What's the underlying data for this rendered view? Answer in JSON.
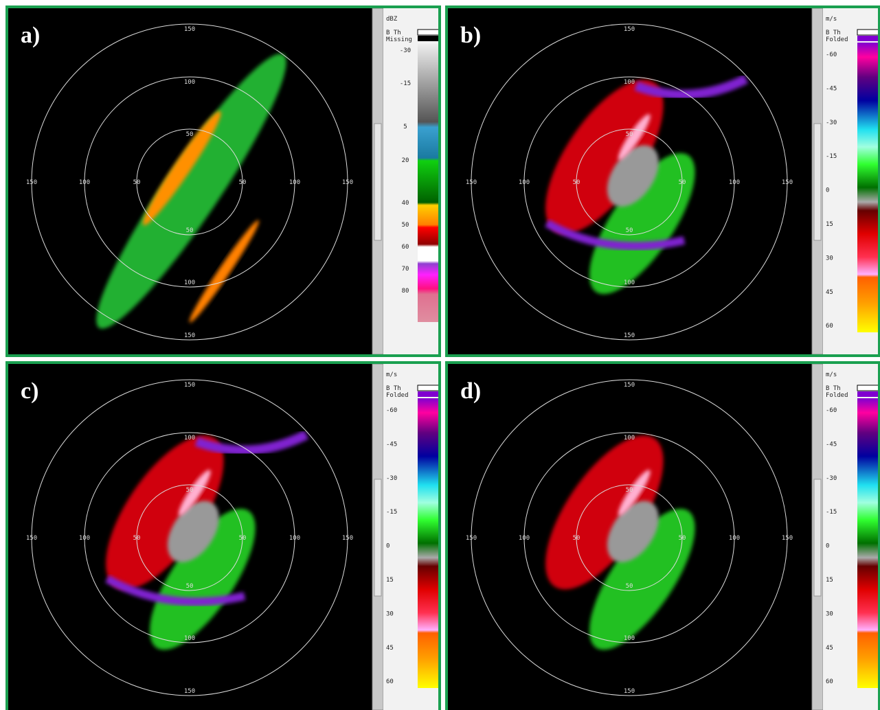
{
  "panels": [
    {
      "label": "a)",
      "ring_labels": {
        "top": [
          "150",
          "100",
          "50"
        ],
        "left": [
          "150",
          "100",
          "50"
        ],
        "right": [
          "50",
          "100",
          "150"
        ],
        "bottom": [
          "50",
          "100",
          "150"
        ]
      },
      "colorbar": {
        "unit": "dBZ",
        "flags": [
          "B Th",
          "Missing"
        ],
        "ticks": [
          "-30",
          "-15",
          "5",
          "20",
          "40",
          "50",
          "60",
          "70",
          "80"
        ]
      }
    },
    {
      "label": "b)",
      "ring_labels": {
        "top": [
          "150",
          "100",
          "50"
        ],
        "left": [
          "150",
          "100",
          "50"
        ],
        "right": [
          "50",
          "100",
          "150"
        ],
        "bottom": [
          "50",
          "100",
          "150"
        ]
      },
      "colorbar": {
        "unit": "m/s",
        "flags": [
          "B Th",
          "Folded"
        ],
        "ticks": [
          "-60",
          "-45",
          "-30",
          "-15",
          "0",
          "15",
          "30",
          "45",
          "60"
        ]
      }
    },
    {
      "label": "c)",
      "ring_labels": {
        "top": [
          "150",
          "100",
          "50"
        ],
        "left": [
          "150",
          "100",
          "50"
        ],
        "right": [
          "50",
          "100",
          "150"
        ],
        "bottom": [
          "50",
          "100",
          "150"
        ]
      },
      "colorbar": {
        "unit": "m/s",
        "flags": [
          "B Th",
          "Folded"
        ],
        "ticks": [
          "-60",
          "-45",
          "-30",
          "-15",
          "0",
          "15",
          "30",
          "45",
          "60"
        ]
      }
    },
    {
      "label": "d)",
      "ring_labels": {
        "top": [
          "150",
          "100",
          "50"
        ],
        "left": [
          "150",
          "100",
          "50"
        ],
        "right": [
          "50",
          "100",
          "150"
        ],
        "bottom": [
          "50",
          "100",
          "150"
        ]
      },
      "colorbar": {
        "unit": "m/s",
        "flags": [
          "B Th",
          "Folded"
        ],
        "ticks": [
          "-60",
          "-45",
          "-30",
          "-15",
          "0",
          "15",
          "30",
          "45",
          "60"
        ]
      }
    }
  ]
}
